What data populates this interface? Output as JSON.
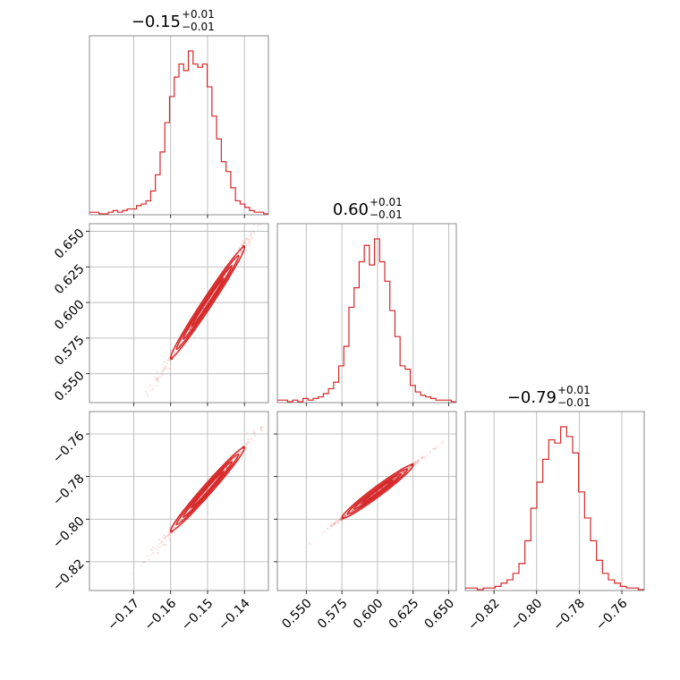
{
  "chart_data": {
    "type": "corner",
    "color": "#d62728",
    "grid": true,
    "parameters": [
      {
        "title_main": "−0.15",
        "title_up": "+0.01",
        "title_down": "−0.01",
        "range": [
          -0.182,
          -0.1335
        ],
        "ticks": [
          -0.17,
          -0.16,
          -0.15,
          -0.14
        ],
        "tick_labels": [
          "−0.17",
          "−0.16",
          "−0.15",
          "−0.14"
        ],
        "hist_y": [
          1,
          1,
          0,
          0,
          1,
          2,
          1,
          2,
          3,
          3,
          5,
          6,
          8,
          14,
          24,
          38,
          56,
          72,
          84,
          92,
          88,
          100,
          92,
          90,
          92,
          78,
          60,
          46,
          32,
          26,
          16,
          8,
          6,
          4,
          2,
          1,
          1,
          0
        ]
      },
      {
        "title_main": "0.60",
        "title_up": "+0.01",
        "title_down": "−0.01",
        "range": [
          0.5297,
          0.6553
        ],
        "ticks": [
          0.55,
          0.575,
          0.6,
          0.625,
          0.65
        ],
        "tick_labels": [
          "0.550",
          "0.575",
          "0.600",
          "0.625",
          "0.650"
        ],
        "hist_y": [
          1,
          1,
          0,
          1,
          0,
          2,
          1,
          2,
          3,
          5,
          8,
          12,
          22,
          34,
          58,
          70,
          86,
          96,
          84,
          100,
          86,
          74,
          56,
          40,
          22,
          20,
          10,
          6,
          4,
          3,
          2,
          1,
          1,
          1,
          0
        ]
      },
      {
        "title_main": "−0.79",
        "title_up": "+0.01",
        "title_down": "−0.01",
        "range": [
          -0.8335,
          -0.7495
        ],
        "ticks": [
          -0.82,
          -0.8,
          -0.78,
          -0.76
        ],
        "tick_labels": [
          "−0.82",
          "−0.80",
          "−0.78",
          "−0.76"
        ],
        "hist_y": [
          1,
          1,
          0,
          1,
          1,
          2,
          4,
          6,
          10,
          16,
          30,
          50,
          66,
          80,
          92,
          90,
          100,
          94,
          84,
          60,
          44,
          30,
          18,
          10,
          6,
          4,
          2,
          1,
          1,
          0
        ]
      }
    ],
    "pairs": [
      {
        "row": 1,
        "col": 0,
        "slope": 3.92,
        "anchor_x": -0.15,
        "anchor_y": 0.6,
        "spread": 0.0028,
        "x_sd": 0.0065,
        "clip_x": [
          -0.16,
          -0.14
        ]
      },
      {
        "row": 2,
        "col": 0,
        "slope": 1.97,
        "anchor_x": -0.15,
        "anchor_y": -0.786,
        "spread": 0.0016,
        "x_sd": 0.0065,
        "clip_x": [
          -0.16,
          -0.14
        ]
      },
      {
        "row": 2,
        "col": 1,
        "slope": 0.5,
        "anchor_x": 0.6,
        "anchor_y": -0.787,
        "spread": 0.0005,
        "x_sd": 0.016,
        "clip_x": [
          0.575,
          0.625
        ]
      }
    ]
  }
}
